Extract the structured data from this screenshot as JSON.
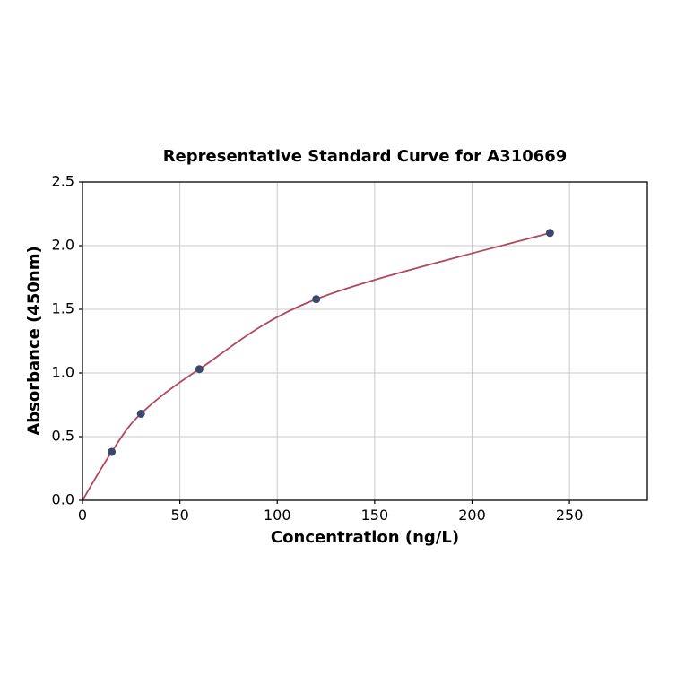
{
  "chart_data": {
    "type": "scatter",
    "title": "Representative Standard Curve for A310669",
    "xlabel": "Concentration (ng/L)",
    "ylabel": "Absorbance (450nm)",
    "x": [
      15,
      30,
      60,
      120,
      240
    ],
    "y": [
      0.38,
      0.68,
      1.03,
      1.58,
      2.1
    ],
    "curve_points": [
      [
        0,
        0
      ],
      [
        15,
        0.38
      ],
      [
        30,
        0.68
      ],
      [
        60,
        1.03
      ],
      [
        120,
        1.58
      ],
      [
        240,
        2.1
      ]
    ],
    "xlim": [
      0,
      290
    ],
    "ylim": [
      0,
      2.5
    ],
    "xticks": [
      0,
      50,
      100,
      150,
      200,
      250
    ],
    "yticks": [
      0,
      0.5,
      1.0,
      1.5,
      2.0,
      2.5
    ],
    "xtick_labels": [
      "0",
      "50",
      "100",
      "150",
      "200",
      "250"
    ],
    "ytick_labels": [
      "0.0",
      "0.5",
      "1.0",
      "1.5",
      "2.0",
      "2.5"
    ],
    "grid": true,
    "legend": "none",
    "colors": {
      "curve": "#b0485e",
      "points": "#3a486b",
      "grid": "#c9c9c9",
      "axes": "#000000",
      "background": "#ffffff"
    }
  }
}
